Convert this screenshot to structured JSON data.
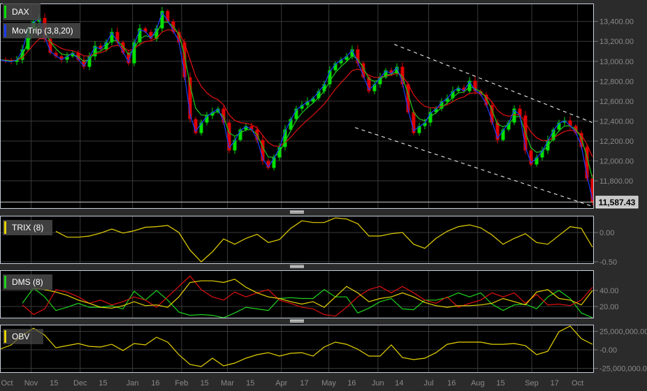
{
  "colors": {
    "background": "#2b2b2b",
    "panel": "#000000",
    "border": "#c8cedc",
    "grid": "#3a3a3a",
    "axis_text": "#8a8a8a",
    "up": "#00e000",
    "down": "#e00000",
    "ma_fast": "#1a3cff",
    "ma_mid": "#1ec81e",
    "ma_slow": "#e01010",
    "trix": "#e6d200",
    "dms_plus": "#1ed21e",
    "dms_minus": "#e01010",
    "dms_adx": "#e6d200",
    "obv": "#e6d200",
    "trendline": "#ffffff"
  },
  "legend": {
    "symbol": {
      "label": "DAX",
      "color": "#00e000"
    },
    "overlay": {
      "label": "MovTrip (3,8,20)",
      "color": "#1a3cff"
    },
    "trix": {
      "label": "TRIX (8)",
      "color": "#e6d200"
    },
    "dms": {
      "label": "DMS (8)",
      "color": "#1ed21e"
    },
    "obv": {
      "label": "OBV",
      "color": "#e6d200"
    }
  },
  "last_price": {
    "label": "11,587.43",
    "value": 11587.43
  },
  "icons": {
    "panel_resize": "grip-lines-icon"
  },
  "chart_data": {
    "type": "candlestick",
    "x_range": [
      "2017-10-13",
      "2018-10-11"
    ],
    "x_ticks": [
      {
        "label": "Oct",
        "date": "2017-10-16"
      },
      {
        "label": "Nov",
        "date": "2017-11-01",
        "grid": true
      },
      {
        "label": "15",
        "date": "2017-11-15"
      },
      {
        "label": "Dec",
        "date": "2017-12-01",
        "grid": true
      },
      {
        "label": "15",
        "date": "2017-12-15"
      },
      {
        "label": "Jan",
        "date": "2018-01-02",
        "grid": true
      },
      {
        "label": "16",
        "date": "2018-01-16"
      },
      {
        "label": "Feb",
        "date": "2018-02-01",
        "grid": true
      },
      {
        "label": "15",
        "date": "2018-02-15"
      },
      {
        "label": "Mar",
        "date": "2018-03-01",
        "grid": true
      },
      {
        "label": "15",
        "date": "2018-03-15"
      },
      {
        "label": "Apr",
        "date": "2018-04-03",
        "grid": true
      },
      {
        "label": "17",
        "date": "2018-04-17"
      },
      {
        "label": "May",
        "date": "2018-05-02",
        "grid": true
      },
      {
        "label": "16",
        "date": "2018-05-16"
      },
      {
        "label": "Jun",
        "date": "2018-06-01",
        "grid": true
      },
      {
        "label": "14",
        "date": "2018-06-14"
      },
      {
        "label": "Jul",
        "date": "2018-07-02",
        "grid": true
      },
      {
        "label": "16",
        "date": "2018-07-16"
      },
      {
        "label": "Aug",
        "date": "2018-08-01",
        "grid": true
      },
      {
        "label": "15",
        "date": "2018-08-15"
      },
      {
        "label": "Sep",
        "date": "2018-09-03",
        "grid": true
      },
      {
        "label": "17",
        "date": "2018-09-17"
      },
      {
        "label": "Oct",
        "date": "2018-10-01",
        "grid": true
      }
    ],
    "price": {
      "ylim": [
        11520,
        13580
      ],
      "y_ticks": [
        {
          "label": "13,400.00",
          "value": 13400
        },
        {
          "label": "13,200.00",
          "value": 13200
        },
        {
          "label": "13,000.00",
          "value": 13000
        },
        {
          "label": "12,800.00",
          "value": 12800
        },
        {
          "label": "12,600.00",
          "value": 12600
        },
        {
          "label": "12,400.00",
          "value": 12400
        },
        {
          "label": "12,200.00",
          "value": 12200
        },
        {
          "label": "12,000.00",
          "value": 12000
        },
        {
          "label": "11,800.00",
          "value": 11800
        }
      ],
      "closes": [
        13015,
        13001,
        12994,
        13015,
        13120,
        13330,
        13400,
        13435,
        13225,
        13085,
        13050,
        13015,
        13050,
        13085,
        13015,
        12945,
        13050,
        13155,
        13120,
        13190,
        13295,
        13190,
        13085,
        12980,
        13190,
        13330,
        13295,
        13225,
        13330,
        13505,
        13400,
        13295,
        13190,
        12840,
        12420,
        12280,
        12385,
        12455,
        12490,
        12525,
        12385,
        12105,
        12210,
        12315,
        12350,
        12315,
        12210,
        12000,
        11930,
        12035,
        12140,
        12315,
        12420,
        12525,
        12560,
        12595,
        12630,
        12700,
        12770,
        12910,
        12980,
        13015,
        13050,
        13120,
        12980,
        12840,
        12700,
        12770,
        12840,
        12910,
        12875,
        12945,
        12770,
        12490,
        12280,
        12350,
        12385,
        12490,
        12525,
        12595,
        12630,
        12700,
        12735,
        12700,
        12805,
        12700,
        12665,
        12560,
        12385,
        12210,
        12315,
        12385,
        12525,
        12455,
        12105,
        11965,
        12035,
        12105,
        12210,
        12315,
        12385,
        12406,
        12350,
        12280,
        12140,
        11825,
        11587.43
      ],
      "moving_averages": [
        3,
        8,
        20
      ],
      "trendlines": [
        {
          "start": {
            "date": "2018-06-11",
            "value": 13170
          },
          "end": {
            "date": "2018-10-10",
            "value": 12385
          }
        },
        {
          "start": {
            "date": "2018-05-18",
            "value": 12335
          },
          "end": {
            "date": "2018-10-10",
            "value": 11545
          }
        }
      ]
    },
    "trix": {
      "ylim": [
        -0.536,
        0.286
      ],
      "y_ticks": [
        {
          "label": "0.00",
          "value": 0
        },
        {
          "label": "-0.50",
          "value": -0.5
        }
      ],
      "values": [
        null,
        null,
        null,
        null,
        null,
        0.02,
        -0.08,
        -0.08,
        -0.06,
        -0.01,
        0.06,
        -0.01,
        0.03,
        0.09,
        0.1,
        0.12,
        0.0,
        -0.3,
        -0.5,
        -0.33,
        -0.11,
        -0.2,
        -0.1,
        -0.03,
        -0.17,
        -0.12,
        0.07,
        0.2,
        0.17,
        0.17,
        0.25,
        0.23,
        0.15,
        -0.06,
        -0.06,
        -0.02,
        0.0,
        -0.2,
        -0.27,
        -0.1,
        0.02,
        0.1,
        0.13,
        0.08,
        -0.04,
        -0.2,
        -0.1,
        -0.02,
        -0.17,
        -0.2,
        -0.05,
        0.1,
        0.07,
        -0.25
      ]
    },
    "dms": {
      "ylim": [
        5.2,
        65.2
      ],
      "y_ticks": [
        {
          "label": "40.00",
          "value": 40
        },
        {
          "label": "20.00",
          "value": 20
        }
      ],
      "series": [
        {
          "key": "plus_di",
          "values": [
            null,
            null,
            24,
            43,
            32,
            15,
            19,
            24,
            19,
            19,
            21,
            17,
            39,
            28,
            40,
            28,
            13,
            9,
            10,
            9,
            6,
            12,
            19,
            17,
            15,
            30,
            31,
            30,
            30,
            41,
            32,
            32,
            12,
            18,
            26,
            30,
            17,
            16,
            28,
            28,
            31,
            37,
            32,
            37,
            23,
            15,
            22,
            23,
            17,
            32,
            40,
            30,
            12,
            6
          ]
        },
        {
          "key": "minus_di",
          "values": [
            null,
            null,
            22,
            10,
            17,
            41,
            38,
            32,
            24,
            28,
            22,
            26,
            32,
            28,
            19,
            32,
            45,
            58,
            41,
            32,
            28,
            38,
            32,
            37,
            41,
            28,
            24,
            19,
            17,
            10,
            8,
            19,
            32,
            41,
            45,
            37,
            45,
            37,
            28,
            24,
            32,
            19,
            24,
            28,
            37,
            32,
            37,
            24,
            35,
            22,
            23,
            21,
            28,
            44
          ]
        },
        {
          "key": "adx",
          "values": [
            null,
            null,
            null,
            43,
            41,
            38,
            34,
            28,
            24,
            19,
            18,
            21,
            26,
            21,
            22,
            19,
            32,
            50,
            52,
            52,
            50,
            54,
            44,
            37,
            32,
            30,
            26,
            23,
            26,
            19,
            32,
            45,
            37,
            26,
            30,
            32,
            37,
            32,
            25,
            21,
            19,
            21,
            21,
            22,
            24,
            30,
            26,
            22,
            38,
            41,
            30,
            28,
            22,
            40
          ]
        }
      ]
    },
    "obv": {
      "ylim": [
        -31100000,
        34000000
      ],
      "y_ticks": [
        {
          "label": "25,000,000.00",
          "value": 25000000
        },
        {
          "label": "-0.00",
          "value": 0
        },
        {
          "label": "-25,000,000.00",
          "value": -25000000
        }
      ],
      "values": [
        900000,
        6600000,
        19800000,
        29200000,
        19800000,
        2800000,
        5700000,
        8500000,
        4700000,
        3800000,
        7500000,
        -900000,
        8500000,
        6600000,
        17000000,
        10400000,
        -6600000,
        -19800000,
        -22600000,
        -11300000,
        -21700000,
        -17900000,
        -11300000,
        -6600000,
        -3800000,
        -8500000,
        -4700000,
        -3800000,
        -8500000,
        3800000,
        10400000,
        7500000,
        900000,
        -8500000,
        -8500000,
        6600000,
        -10400000,
        -13200000,
        -11300000,
        -3800000,
        7500000,
        10400000,
        10400000,
        10400000,
        7500000,
        7500000,
        8500000,
        5700000,
        -6600000,
        -1900000,
        24500000,
        32100000,
        15100000,
        7500000
      ]
    }
  }
}
